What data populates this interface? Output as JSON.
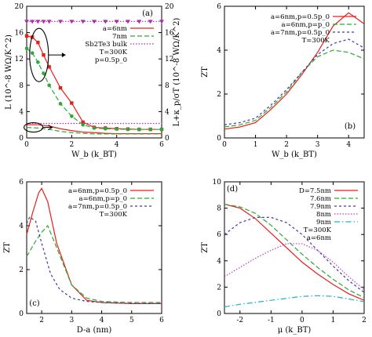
{
  "chart_data": [
    {
      "id": "a",
      "type": "line",
      "panel_label": "(a)",
      "xlabel": "W_b (k_BT)",
      "ylabel": "L (10^-8 WΩ/K^2)",
      "y2label": "L+κ_p/σT (10^-8 WΩ/K^2)",
      "xlim": [
        0,
        6
      ],
      "ylim": [
        0,
        20
      ],
      "y2lim": [
        0,
        20
      ],
      "xticks": [
        "0",
        "2",
        "4",
        "6"
      ],
      "yticks": [
        "0",
        "4",
        "8",
        "12",
        "16",
        "20"
      ],
      "y2ticks": [
        "0",
        "4",
        "8",
        "12",
        "16",
        "20"
      ],
      "legend_position": "right",
      "annotations": [
        "T=300K",
        "p=0.5p_0"
      ],
      "series": [
        {
          "name": "a=6nm",
          "color": "#e8201a",
          "dash": "",
          "marker": "square",
          "axis": "right",
          "x": [
            0,
            0.25,
            0.5,
            0.75,
            1,
            1.5,
            2,
            2.5,
            3,
            3.5,
            4,
            4.5,
            5,
            5.5,
            6
          ],
          "y": [
            15.5,
            15.3,
            14.5,
            12.6,
            10.8,
            7.6,
            5.3,
            2.4,
            1.6,
            1.5,
            1.4,
            1.35,
            1.3,
            1.3,
            1.3
          ]
        },
        {
          "name": "7nm",
          "color": "#2ea836",
          "dash": "6,3",
          "marker": "circle",
          "axis": "right",
          "x": [
            0,
            0.25,
            0.5,
            0.75,
            1,
            1.5,
            2,
            2.5,
            3,
            3.5,
            4,
            4.5,
            5,
            5.5,
            6
          ],
          "y": [
            13.6,
            12.9,
            11.5,
            9.8,
            8.0,
            5.2,
            3.3,
            2.0,
            1.5,
            1.4,
            1.35,
            1.3,
            1.3,
            1.3,
            1.3
          ]
        },
        {
          "name": "Sb2Te3 bulk",
          "color": "#b02ab0",
          "dash": "1.5,2",
          "marker": "triangle",
          "axis": "right",
          "x": [
            0,
            0.25,
            0.5,
            0.75,
            1,
            1.5,
            2,
            2.5,
            3,
            3.5,
            4,
            4.5,
            5,
            5.5,
            6
          ],
          "y": [
            17.7,
            17.7,
            17.7,
            17.7,
            17.7,
            17.7,
            17.7,
            17.7,
            17.7,
            17.7,
            17.7,
            17.7,
            17.7,
            17.7,
            17.7
          ]
        },
        {
          "name": "",
          "color": "#e8201a",
          "dash": "",
          "marker": "",
          "axis": "left",
          "x": [
            0,
            0.5,
            1,
            1.5,
            2,
            2.5,
            3,
            3.5,
            4,
            5,
            6
          ],
          "y": [
            2.0,
            2.0,
            1.8,
            1.4,
            1.1,
            0.9,
            0.8,
            0.7,
            0.65,
            0.65,
            0.65
          ]
        },
        {
          "name": "",
          "color": "#2ea836",
          "dash": "6,3",
          "marker": "",
          "axis": "left",
          "x": [
            0,
            0.5,
            1,
            1.5,
            2,
            2.5,
            3,
            3.5,
            4,
            5,
            6
          ],
          "y": [
            1.6,
            1.5,
            1.3,
            1.0,
            0.8,
            0.7,
            0.6,
            0.6,
            0.6,
            0.6,
            0.6
          ]
        },
        {
          "name": "",
          "color": "#b02ab0",
          "dash": "1.5,2",
          "marker": "",
          "axis": "left",
          "x": [
            0,
            6
          ],
          "y": [
            2.2,
            2.2
          ]
        }
      ]
    },
    {
      "id": "b",
      "type": "line",
      "panel_label": "(b)",
      "xlabel": "W_b (k_BT)",
      "ylabel": "ZT",
      "xlim": [
        0,
        4.5
      ],
      "ylim": [
        0,
        6
      ],
      "xticks": [
        "0",
        "1",
        "2",
        "3",
        "4"
      ],
      "yticks": [
        "0",
        "2",
        "4",
        "6"
      ],
      "legend_position": "top-left",
      "annotations": [
        "T=300K"
      ],
      "series": [
        {
          "name": "a=6nm,p=0.5p_0",
          "color": "#e8201a",
          "dash": "",
          "x": [
            0,
            0.5,
            1,
            1.5,
            2,
            2.5,
            3,
            3.5,
            4,
            4.5
          ],
          "y": [
            0.4,
            0.5,
            0.7,
            1.3,
            2.0,
            2.9,
            3.9,
            5.1,
            5.7,
            5.2
          ]
        },
        {
          "name": "a=6nm,p=p_0",
          "color": "#2ea836",
          "dash": "6,3",
          "x": [
            0,
            0.5,
            1,
            1.5,
            2,
            2.5,
            3,
            3.5,
            4,
            4.5
          ],
          "y": [
            0.5,
            0.6,
            0.8,
            1.4,
            2.1,
            3.0,
            3.7,
            4.0,
            3.9,
            3.6
          ]
        },
        {
          "name": "a=7nm,p=0.5p_0",
          "color": "#3a3aa8",
          "dash": "3,3",
          "x": [
            0,
            0.5,
            1,
            1.5,
            2,
            2.5,
            3,
            3.5,
            4,
            4.5
          ],
          "y": [
            0.6,
            0.7,
            0.9,
            1.5,
            2.2,
            3.0,
            3.8,
            4.3,
            4.5,
            4.1
          ]
        }
      ]
    },
    {
      "id": "c",
      "type": "line",
      "panel_label": "(c)",
      "xlabel": "D-a (nm)",
      "ylabel": "ZT",
      "xlim": [
        1.5,
        6
      ],
      "ylim": [
        0,
        6
      ],
      "xticks": [
        "2",
        "3",
        "4",
        "5",
        "6"
      ],
      "yticks": [
        "0",
        "2",
        "4",
        "6"
      ],
      "legend_position": "top-right",
      "annotations": [
        "T=300K"
      ],
      "series": [
        {
          "name": "a=6nm,p=0.5p_0",
          "color": "#e8201a",
          "dash": "",
          "x": [
            1.5,
            1.7,
            1.9,
            2.0,
            2.2,
            2.5,
            3.0,
            3.5,
            4,
            5,
            6
          ],
          "y": [
            3.6,
            4.6,
            5.5,
            5.7,
            5.1,
            3.2,
            1.3,
            0.6,
            0.5,
            0.45,
            0.45
          ]
        },
        {
          "name": "a=6nm,p=p_0",
          "color": "#2ea836",
          "dash": "6,3",
          "x": [
            1.5,
            1.8,
            2.0,
            2.2,
            2.5,
            3.0,
            3.5,
            4,
            5,
            6
          ],
          "y": [
            2.6,
            3.3,
            3.7,
            4.0,
            3.0,
            1.3,
            0.7,
            0.55,
            0.5,
            0.5
          ]
        },
        {
          "name": "a=7nm,p=0.5p_0",
          "color": "#3a3aa8",
          "dash": "3,3",
          "x": [
            1.5,
            1.6,
            1.8,
            2.0,
            2.3,
            2.6,
            3.0,
            3.5,
            4,
            5,
            6
          ],
          "y": [
            4.1,
            4.4,
            4.2,
            3.2,
            1.8,
            1.1,
            0.7,
            0.55,
            0.5,
            0.45,
            0.45
          ]
        }
      ]
    },
    {
      "id": "d",
      "type": "line",
      "panel_label": "(d)",
      "xlabel": "μ (k_BT)",
      "ylabel": "ZT",
      "xlim": [
        -2.5,
        2
      ],
      "ylim": [
        0,
        10
      ],
      "xticks": [
        "-2",
        "-1",
        "0",
        "1",
        "2"
      ],
      "yticks": [
        "0",
        "2",
        "4",
        "6",
        "8",
        "10"
      ],
      "legend_position": "top-right",
      "annotations": [
        "T=300K",
        "a=6nm"
      ],
      "series": [
        {
          "name": "D=7.5nm",
          "color": "#e8201a",
          "dash": "",
          "x": [
            -2.5,
            -2,
            -1.5,
            -1,
            -0.5,
            0,
            0.5,
            1,
            1.5,
            2
          ],
          "y": [
            8.3,
            8.0,
            7.2,
            6.1,
            5.0,
            3.9,
            3.0,
            2.2,
            1.5,
            1.0
          ]
        },
        {
          "name": "7.6nm",
          "color": "#2ea836",
          "dash": "6,3",
          "x": [
            -2.5,
            -2,
            -1.5,
            -1,
            -0.5,
            0,
            0.5,
            1,
            1.5,
            2
          ],
          "y": [
            8.3,
            8.1,
            7.6,
            6.7,
            5.6,
            4.5,
            3.5,
            2.6,
            1.8,
            1.2
          ]
        },
        {
          "name": "7.9nm",
          "color": "#3a3aa8",
          "dash": "3,3",
          "x": [
            -2.5,
            -2,
            -1.5,
            -1,
            -0.5,
            0,
            0.5,
            1,
            1.5,
            2
          ],
          "y": [
            6.0,
            6.9,
            7.3,
            7.3,
            6.9,
            6.0,
            4.8,
            3.6,
            2.5,
            1.6
          ]
        },
        {
          "name": "8nm",
          "color": "#c63ac6",
          "dash": "1.5,2",
          "x": [
            -2.5,
            -2,
            -1.5,
            -1,
            -0.5,
            0,
            0.5,
            1,
            1.5,
            2
          ],
          "y": [
            2.8,
            3.5,
            4.2,
            4.8,
            5.3,
            5.3,
            4.8,
            3.9,
            2.8,
            1.8
          ]
        },
        {
          "name": "9nm",
          "color": "#22b0c8",
          "dash": "7,3,1.5,3",
          "x": [
            -2.5,
            -2,
            -1.5,
            -1,
            -0.5,
            0,
            0.5,
            1,
            1.5,
            2
          ],
          "y": [
            0.5,
            0.7,
            0.85,
            1.0,
            1.15,
            1.3,
            1.35,
            1.3,
            1.1,
            0.9
          ]
        }
      ]
    }
  ]
}
